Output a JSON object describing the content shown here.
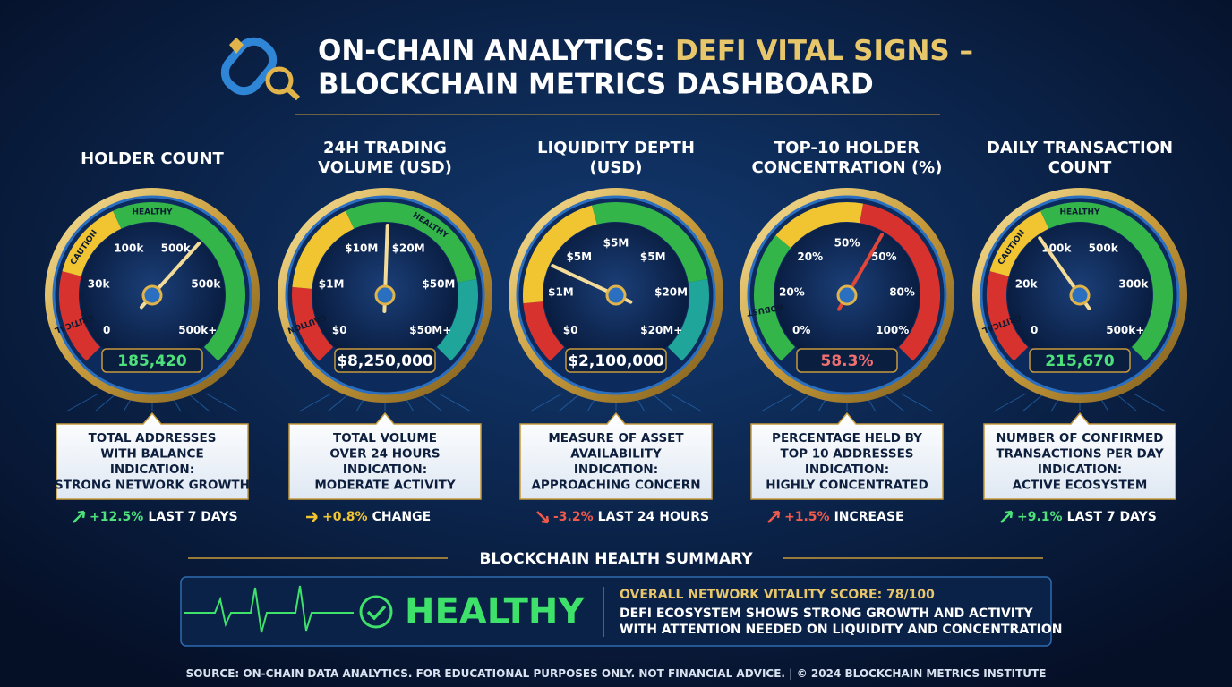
{
  "header": {
    "title_part1": "ON-CHAIN ANALYTICS: ",
    "title_highlight": "DEFI VITAL SIGNS –",
    "title_line2": "BLOCKCHAIN METRICS DASHBOARD"
  },
  "gauges": [
    {
      "title": [
        "HOLDER COUNT"
      ],
      "zones": [
        "CRITICAL",
        "CAUTION",
        "HEALTHY"
      ],
      "scale": [
        "0",
        "30k",
        "100k",
        "500k",
        "500k",
        "500k+"
      ],
      "value": "185,420",
      "description": [
        "TOTAL ADDRESSES",
        "WITH BALANCE"
      ],
      "indication_label": "INDICATION:",
      "indication": "STRONG NETWORK GROWTH",
      "trend_value": "+12.5%",
      "trend_text": "LAST 7 DAYS"
    },
    {
      "title": [
        "24H TRADING",
        "VOLUME (USD)"
      ],
      "zones": [
        "CAUTION",
        "HEALTHY"
      ],
      "scale": [
        "$0",
        "$1M",
        "$10M",
        "$20M",
        "$50M",
        "$50M+"
      ],
      "value": "$8,250,000",
      "description": [
        "TOTAL VOLUME",
        "OVER 24 HOURS"
      ],
      "indication_label": "INDICATION:",
      "indication": "MODERATE ACTIVITY",
      "trend_value": "+0.8%",
      "trend_text": "CHANGE"
    },
    {
      "title": [
        "LIQUIDITY DEPTH",
        "(USD)"
      ],
      "zones": [],
      "scale": [
        "$0",
        "$1M",
        "$5M",
        "$5M",
        "$5M",
        "$20M",
        "$20M+"
      ],
      "value": "$2,100,000",
      "description": [
        "MEASURE OF ASSET",
        "AVAILABILITY"
      ],
      "indication_label": "INDICATION:",
      "indication": "APPROACHING CONCERN",
      "trend_value": "-3.2%",
      "trend_text": "LAST 24 HOURS"
    },
    {
      "title": [
        "TOP-10 HOLDER",
        "CONCENTRATION (%)"
      ],
      "zones": [
        "ROBUST"
      ],
      "scale": [
        "0%",
        "20%",
        "20%",
        "50%",
        "50%",
        "80%",
        "100%"
      ],
      "value": "58.3%",
      "description": [
        "PERCENTAGE HELD BY",
        "TOP 10 ADDRESSES"
      ],
      "indication_label": "INDICATION:",
      "indication": "HIGHLY CONCENTRATED",
      "trend_value": "+1.5%",
      "trend_text": "INCREASE"
    },
    {
      "title": [
        "DAILY TRANSACTION",
        "COUNT"
      ],
      "zones": [
        "CRITICAL",
        "CAUTION",
        "HEALTHY"
      ],
      "scale": [
        "0",
        "20k",
        "100k",
        "500k",
        "300k",
        "500k+"
      ],
      "value": "215,670",
      "description": [
        "NUMBER OF CONFIRMED",
        "TRANSACTIONS PER DAY"
      ],
      "indication_label": "INDICATION:",
      "indication": "ACTIVE ECOSYSTEM",
      "trend_value": "+9.1%",
      "trend_text": "LAST 7 DAYS"
    }
  ],
  "summary": {
    "heading": "BLOCKCHAIN HEALTH SUMMARY",
    "status": "HEALTHY",
    "score": "OVERALL NETWORK VITALITY SCORE: 78/100",
    "text": [
      "DEFI ECOSYSTEM SHOWS STRONG GROWTH AND ACTIVITY",
      "WITH ATTENTION NEEDED ON LIQUIDITY AND CONCENTRATION"
    ]
  },
  "footer": {
    "source_label": "SOURCE:",
    "source_text": " ON-CHAIN DATA ANALYTICS. FOR EDUCATIONAL PURPOSES ONLY. NOT FINANCIAL ADVICE. | © 2024 BLOCKCHAIN METRICS INSTITUTE"
  }
}
